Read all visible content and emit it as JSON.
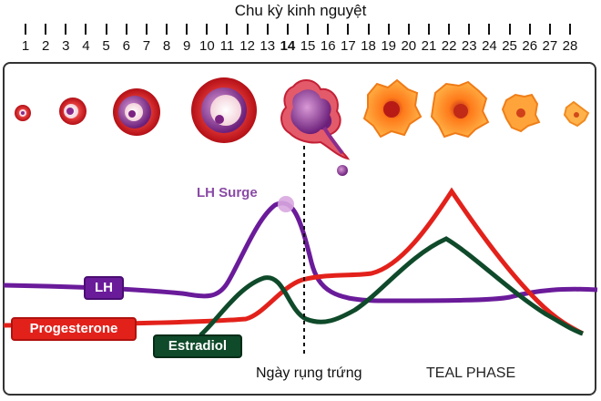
{
  "title": "Chu kỳ kinh nguyệt",
  "days": [
    "1",
    "2",
    "3",
    "4",
    "5",
    "6",
    "7",
    "8",
    "9",
    "10",
    "11",
    "12",
    "13",
    "14",
    "15",
    "16",
    "17",
    "18",
    "19",
    "20",
    "21",
    "22",
    "23",
    "24",
    "25",
    "26",
    "27",
    "28"
  ],
  "highlight_day": "14",
  "hormones": {
    "lh": "LH",
    "progesterone": "Progesterone",
    "estradiol": "Estradiol",
    "lh_surge": "LH Surge"
  },
  "ovulation_label": "Ngày rụng trứng",
  "luteal_label": "TEAL PHASE",
  "colors": {
    "lh": "#6a1b9a",
    "progesterone": "#e3211b",
    "estradiol": "#0f4a2a",
    "surge": "#8a4aa6"
  }
}
